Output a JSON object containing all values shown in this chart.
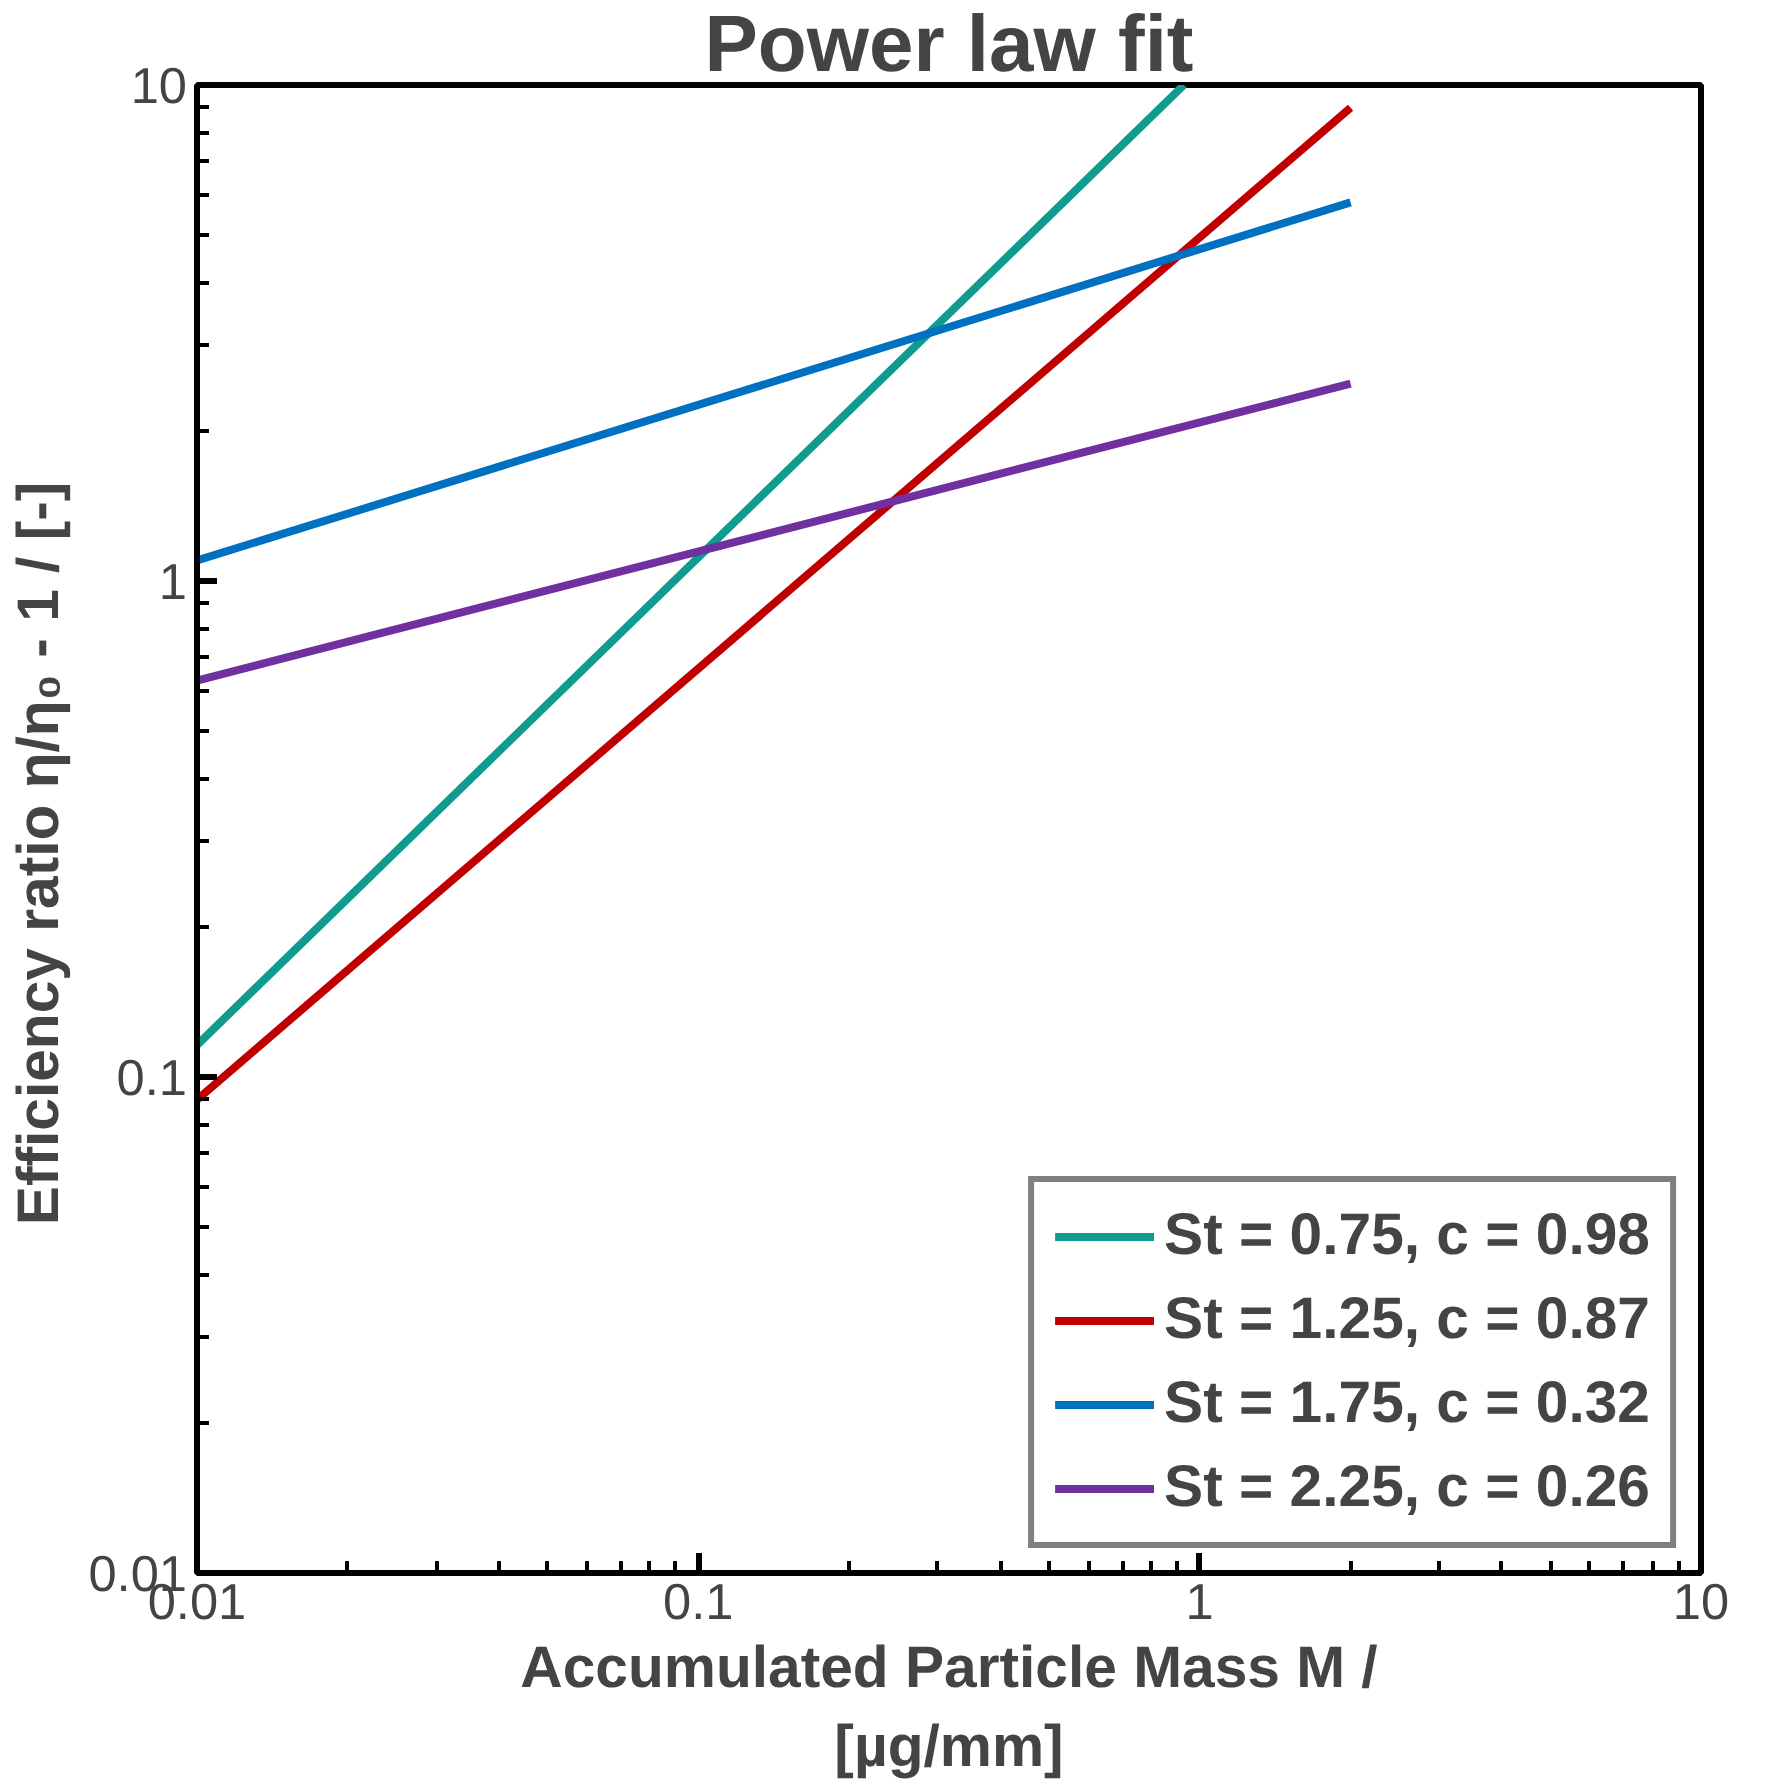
{
  "chart_data": {
    "type": "line",
    "title": "Power law fit",
    "xlabel": "Accumulated Particle Mass M / [µg/mm]",
    "ylabel": "Efficiency ratio   η/η₀ - 1  / [-]",
    "log": "xy",
    "grid": false,
    "legend": "bottom right",
    "marker": "none",
    "line_style": "solid",
    "xlim": [
      0.01,
      10
    ],
    "ylim": [
      0.01,
      10
    ],
    "xticks": [
      0.01,
      0.1,
      1,
      10
    ],
    "yticks": [
      0.01,
      0.1,
      1,
      10
    ],
    "series": [
      {
        "name": "St = 0.75, c = 0.98",
        "color": "#0f9b8e",
        "x": [
          0.01,
          0.93
        ],
        "values": [
          0.116,
          10
        ]
      },
      {
        "name": "St = 1.25, c = 0.87",
        "color": "#c00000",
        "x": [
          0.01,
          2
        ],
        "values": [
          0.09,
          9
        ]
      },
      {
        "name": "St = 1.75, c = 0.32",
        "color": "#0070c0",
        "x": [
          0.01,
          2
        ],
        "values": [
          1.1,
          5.8
        ]
      },
      {
        "name": "St = 2.25, c = 0.26",
        "color": "#7030a0",
        "x": [
          0.01,
          2
        ],
        "values": [
          0.63,
          2.5
        ]
      }
    ]
  }
}
